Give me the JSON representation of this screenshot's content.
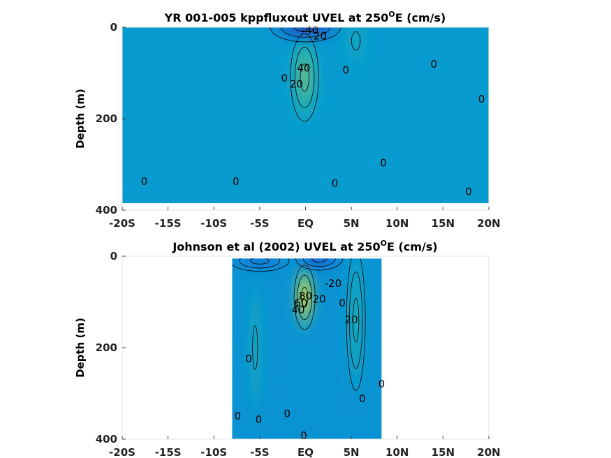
{
  "chart_data": [
    {
      "type": "contour",
      "title_main": "YR 001-005 kppfluxout UVEL at 250",
      "title_sup": "O",
      "title_tail": "E (cm/s)",
      "ylabel": "Depth (m)",
      "xlabel": "",
      "xlim": [
        -20,
        20
      ],
      "ylim": [
        0,
        400
      ],
      "y_reversed": true,
      "xticks": [
        -20,
        -15,
        -10,
        -5,
        0,
        5,
        10,
        15,
        20
      ],
      "xtick_labels": [
        "-20S",
        "-15S",
        "-10S",
        "-5S",
        "EQ",
        "5N",
        "10N",
        "15N",
        "20N"
      ],
      "yticks": [
        0,
        200,
        400
      ],
      "ytick_labels": [
        "0",
        "200",
        "400"
      ],
      "data_extent": {
        "x": [
          -20,
          20
        ],
        "y": [
          0,
          385
        ]
      },
      "background_value": 0,
      "features": [
        {
          "name": "undercurrent",
          "x": -0.1,
          "y": 110,
          "peak": 48,
          "sx": 1.2,
          "sy": 75
        },
        {
          "name": "surface-westward-flow",
          "x": 0,
          "y": 0,
          "peak": -55,
          "sx": 3.0,
          "sy": 25
        },
        {
          "name": "off-equator-countercurrent",
          "x": 5.5,
          "y": 30,
          "peak": 12,
          "sx": 1.2,
          "sy": 50
        }
      ],
      "contour_labels": [
        {
          "text": "-40",
          "x": 0.5,
          "y": 8
        },
        {
          "text": "20",
          "x": 1.6,
          "y": 20
        },
        {
          "text": "40",
          "x": -0.2,
          "y": 90
        },
        {
          "text": "0",
          "x": -2.3,
          "y": 112
        },
        {
          "text": "20",
          "x": -1.0,
          "y": 125
        },
        {
          "text": "0",
          "x": 4.4,
          "y": 95
        },
        {
          "text": "0",
          "x": 14.0,
          "y": 82
        },
        {
          "text": "0",
          "x": 19.2,
          "y": 158
        },
        {
          "text": "0",
          "x": 8.5,
          "y": 298
        },
        {
          "text": "0",
          "x": -17.6,
          "y": 338
        },
        {
          "text": "0",
          "x": -7.6,
          "y": 338
        },
        {
          "text": "0",
          "x": 3.2,
          "y": 342
        },
        {
          "text": "0",
          "x": 17.8,
          "y": 360
        }
      ]
    },
    {
      "type": "contour",
      "title_main": "Johnson et al (2002) UVEL at 250",
      "title_sup": "O",
      "title_tail": "E (cm/s)",
      "ylabel": "Depth (m)",
      "xlabel": "",
      "xlim": [
        -20,
        20
      ],
      "ylim": [
        0,
        400
      ],
      "y_reversed": true,
      "xticks": [
        -20,
        -15,
        -10,
        -5,
        0,
        5,
        10,
        15,
        20
      ],
      "xtick_labels": [
        "-20S",
        "-15S",
        "-10S",
        "-5S",
        "EQ",
        "5N",
        "10N",
        "15N",
        "20N"
      ],
      "yticks": [
        0,
        200,
        400
      ],
      "ytick_labels": [
        "0",
        "200",
        "400"
      ],
      "data_extent": {
        "x": [
          -8,
          8.3
        ],
        "y": [
          5,
          400
        ]
      },
      "background_value": -5,
      "features": [
        {
          "name": "undercurrent",
          "x": -0.1,
          "y": 90,
          "peak": 95,
          "sx": 0.9,
          "sy": 55
        },
        {
          "name": "surface-westward-flow",
          "x": 1.5,
          "y": 5,
          "peak": -45,
          "sx": 2.0,
          "sy": 20
        },
        {
          "name": "northern-subsurface-jet",
          "x": 5.5,
          "y": 140,
          "peak": 22,
          "sx": 0.8,
          "sy": 120
        },
        {
          "name": "southern-subsurface-jet",
          "x": -5.5,
          "y": 200,
          "peak": 14,
          "sx": 0.7,
          "sy": 120
        },
        {
          "name": "south-surface-flow",
          "x": -5.0,
          "y": 10,
          "peak": -30,
          "sx": 2.5,
          "sy": 18
        }
      ],
      "contour_labels": [
        {
          "text": "80",
          "x": 0.0,
          "y": 88
        },
        {
          "text": "60",
          "x": -0.5,
          "y": 103
        },
        {
          "text": "40",
          "x": -0.8,
          "y": 118
        },
        {
          "text": "20",
          "x": 1.5,
          "y": 95
        },
        {
          "text": "-20",
          "x": 3.0,
          "y": 60
        },
        {
          "text": "0",
          "x": 4.0,
          "y": 103
        },
        {
          "text": "20",
          "x": 5.0,
          "y": 140
        },
        {
          "text": "0",
          "x": -6.2,
          "y": 225
        },
        {
          "text": "0",
          "x": 8.3,
          "y": 280
        },
        {
          "text": "0",
          "x": 6.2,
          "y": 312
        },
        {
          "text": "0",
          "x": -7.4,
          "y": 350
        },
        {
          "text": "0",
          "x": -5.1,
          "y": 358
        },
        {
          "text": "0",
          "x": -2.0,
          "y": 345
        },
        {
          "text": "0",
          "x": -0.2,
          "y": 393
        }
      ]
    }
  ]
}
